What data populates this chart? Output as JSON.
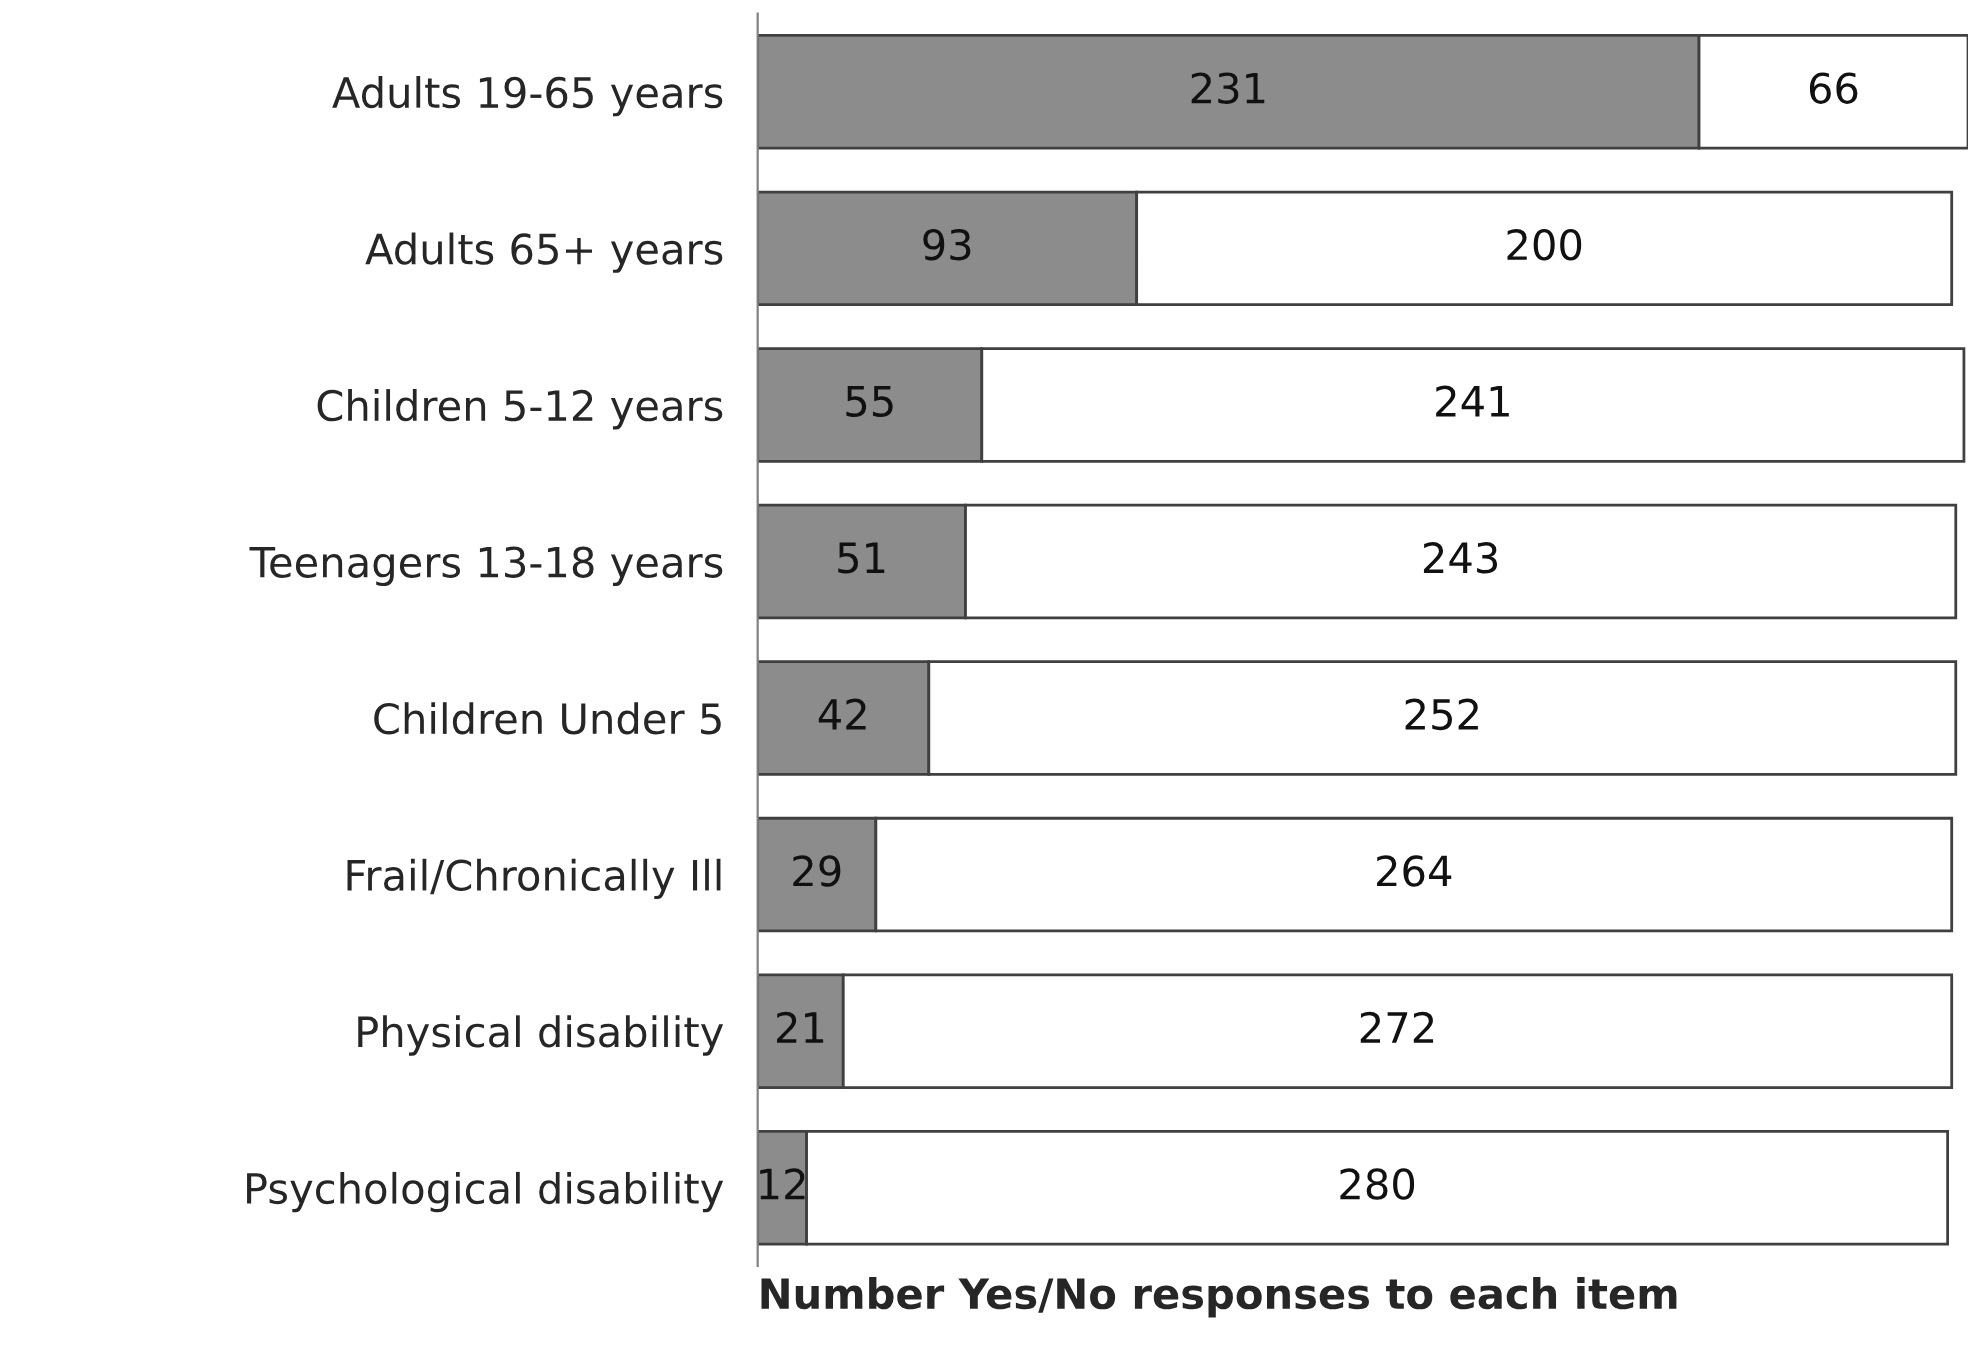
{
  "chart_data": {
    "type": "bar",
    "orientation": "horizontal",
    "stacked": true,
    "data_labels": true,
    "tick_labels": "y",
    "grid": false,
    "legend": false,
    "xlabel": "Number Yes/No responses to each item",
    "xlim": [
      0,
      297
    ],
    "categories": [
      "Adults 19-65 years",
      "Adults 65+ years",
      "Children 5-12 years",
      "Teenagers 13-18 years",
      "Children Under 5",
      "Frail/Chronically Ill",
      "Physical disability",
      "Psychological disability"
    ],
    "series": [
      {
        "color": "#8c8c8c",
        "values": [
          231,
          93,
          55,
          51,
          42,
          29,
          21,
          12
        ]
      },
      {
        "color": "#ffffff",
        "values": [
          66,
          200,
          241,
          243,
          252,
          264,
          272,
          280
        ]
      }
    ]
  }
}
